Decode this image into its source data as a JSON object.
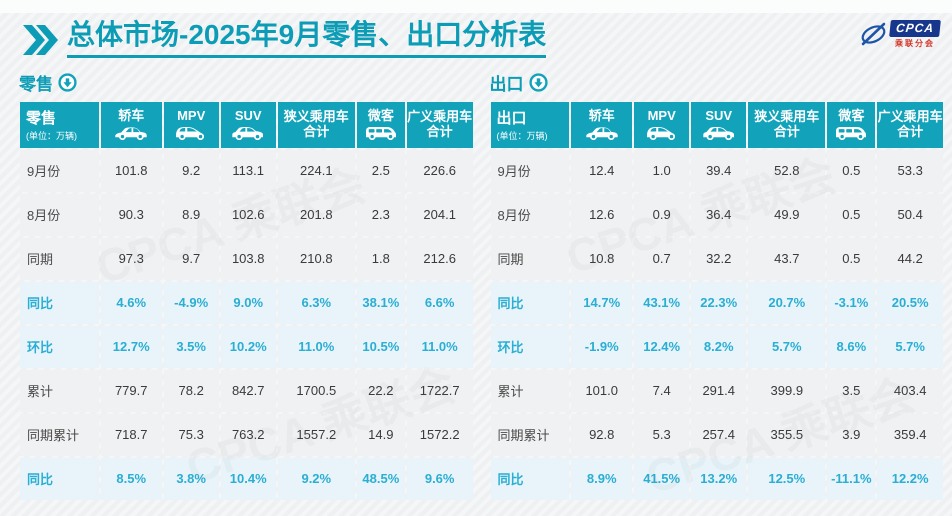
{
  "header": {
    "title_bold": "总体市场",
    "title_rest": "-2025年9月零售、出口分析表",
    "logo_text": "CPCA",
    "logo_subtext": "乘联分会"
  },
  "watermark": "CPCA 乘联会",
  "colors": {
    "accent": "#12a3bb",
    "title": "#0c9cb6",
    "highlight_text": "#2aaed3",
    "highlight_bg": "#e8f4fa",
    "row_bg": "#f0f1f3",
    "logo_navy": "#17378c",
    "logo_red": "#d4372c"
  },
  "tables": [
    {
      "label": "零售",
      "unit": "(单位：万辆)",
      "columns": [
        {
          "label": "轿车",
          "icon": "sedan"
        },
        {
          "label": "MPV",
          "icon": "mpv"
        },
        {
          "label": "SUV",
          "icon": "suv"
        },
        {
          "label": "狭义乘用车",
          "sublabel": "合计"
        },
        {
          "label": "微客",
          "icon": "microvan"
        },
        {
          "label": "广义乘用车",
          "sublabel": "合计"
        }
      ],
      "rows": [
        {
          "label": "9月份",
          "highlight": false,
          "values": [
            "101.8",
            "9.2",
            "113.1",
            "224.1",
            "2.5",
            "226.6"
          ]
        },
        {
          "label": "8月份",
          "highlight": false,
          "values": [
            "90.3",
            "8.9",
            "102.6",
            "201.8",
            "2.3",
            "204.1"
          ]
        },
        {
          "label": "同期",
          "highlight": false,
          "values": [
            "97.3",
            "9.7",
            "103.8",
            "210.8",
            "1.8",
            "212.6"
          ]
        },
        {
          "label": "同比",
          "highlight": true,
          "values": [
            "4.6%",
            "-4.9%",
            "9.0%",
            "6.3%",
            "38.1%",
            "6.6%"
          ]
        },
        {
          "label": "环比",
          "highlight": true,
          "values": [
            "12.7%",
            "3.5%",
            "10.2%",
            "11.0%",
            "10.5%",
            "11.0%"
          ]
        },
        {
          "label": "累计",
          "highlight": false,
          "values": [
            "779.7",
            "78.2",
            "842.7",
            "1700.5",
            "22.2",
            "1722.7"
          ]
        },
        {
          "label": "同期累计",
          "highlight": false,
          "values": [
            "718.7",
            "75.3",
            "763.2",
            "1557.2",
            "14.9",
            "1572.2"
          ]
        },
        {
          "label": "同比",
          "highlight": true,
          "values": [
            "8.5%",
            "3.8%",
            "10.4%",
            "9.2%",
            "48.5%",
            "9.6%"
          ]
        }
      ]
    },
    {
      "label": "出口",
      "unit": "(单位：万辆)",
      "columns": [
        {
          "label": "轿车",
          "icon": "sedan"
        },
        {
          "label": "MPV",
          "icon": "mpv"
        },
        {
          "label": "SUV",
          "icon": "suv"
        },
        {
          "label": "狭义乘用车",
          "sublabel": "合计"
        },
        {
          "label": "微客",
          "icon": "microvan"
        },
        {
          "label": "广义乘用车",
          "sublabel": "合计"
        }
      ],
      "rows": [
        {
          "label": "9月份",
          "highlight": false,
          "values": [
            "12.4",
            "1.0",
            "39.4",
            "52.8",
            "0.5",
            "53.3"
          ]
        },
        {
          "label": "8月份",
          "highlight": false,
          "values": [
            "12.6",
            "0.9",
            "36.4",
            "49.9",
            "0.5",
            "50.4"
          ]
        },
        {
          "label": "同期",
          "highlight": false,
          "values": [
            "10.8",
            "0.7",
            "32.2",
            "43.7",
            "0.5",
            "44.2"
          ]
        },
        {
          "label": "同比",
          "highlight": true,
          "values": [
            "14.7%",
            "43.1%",
            "22.3%",
            "20.7%",
            "-3.1%",
            "20.5%"
          ]
        },
        {
          "label": "环比",
          "highlight": true,
          "values": [
            "-1.9%",
            "12.4%",
            "8.2%",
            "5.7%",
            "8.6%",
            "5.7%"
          ]
        },
        {
          "label": "累计",
          "highlight": false,
          "values": [
            "101.0",
            "7.4",
            "291.4",
            "399.9",
            "3.5",
            "403.4"
          ]
        },
        {
          "label": "同期累计",
          "highlight": false,
          "values": [
            "92.8",
            "5.3",
            "257.4",
            "355.5",
            "3.9",
            "359.4"
          ]
        },
        {
          "label": "同比",
          "highlight": true,
          "values": [
            "8.9%",
            "41.5%",
            "13.2%",
            "12.5%",
            "-11.1%",
            "12.2%"
          ]
        }
      ]
    }
  ]
}
